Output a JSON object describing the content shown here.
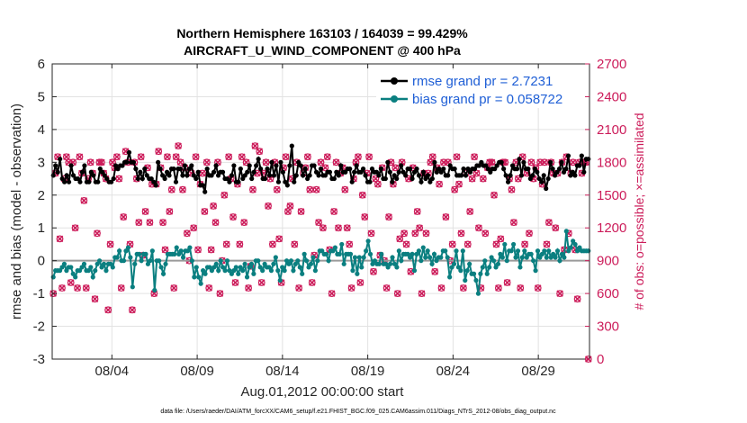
{
  "chart_data": {
    "type": "line",
    "title_line1": "Northern Hemisphere 163103 / 164039 = 99.429%",
    "title_line2": "AIRCRAFT_U_WIND_COMPONENT @ 400 hPa",
    "xlabel": "Aug.01,2012 00:00:00 start",
    "ylabel_left": "rmse and bias (model - observation)",
    "ylabel_right": "# of obs: o=possible; ×=assimilated",
    "footnote": "data file: /Users/raeder/DAI/ATM_forcXX/CAM6_setup/f.e21.FHIST_BGC.f09_025.CAM6assim.011/Diags_NTrS_2012-08/obs_diag_output.nc",
    "xlim": [
      0,
      31.5
    ],
    "ylim_left": [
      -3,
      6
    ],
    "ylim_right": [
      0,
      2700
    ],
    "x_ticks": [
      3.5,
      8.5,
      13.5,
      18.5,
      23.5,
      28.5
    ],
    "x_tick_labels": [
      "08/04",
      "08/09",
      "08/14",
      "08/19",
      "08/24",
      "08/29"
    ],
    "y_ticks_left": [
      "-3",
      "-2",
      "-1",
      "0",
      "1",
      "2",
      "3",
      "4",
      "5",
      "6"
    ],
    "y_ticks_right": [
      "0",
      "300",
      "600",
      "900",
      "1200",
      "1500",
      "1800",
      "2100",
      "2400",
      "2700"
    ],
    "grid": true,
    "legend_position": "top-right",
    "zero_line": 0,
    "series": [
      {
        "name": "rmse grand pr = 2.7231",
        "axis": "left",
        "color": "#000000",
        "values": [
          2.6,
          2.9,
          2.7,
          3.1,
          2.5,
          2.4,
          2.6,
          2.4,
          2.9,
          2.6,
          2.5,
          2.5,
          2.4,
          2.7,
          2.9,
          2.4,
          2.4,
          2.7,
          2.6,
          2.4,
          2.4,
          2.8,
          2.7,
          2.6,
          2.5,
          2.4,
          2.4,
          2.5,
          2.9,
          2.8,
          2.9,
          2.9,
          3.0,
          3.0,
          3.3,
          3.0,
          3.0,
          2.8,
          2.5,
          2.7,
          2.5,
          2.8,
          2.6,
          2.5,
          2.5,
          2.4,
          2.3,
          3.0,
          2.8,
          2.6,
          2.5,
          2.7,
          2.6,
          2.8,
          2.8,
          2.4,
          2.8,
          2.8,
          2.6,
          2.9,
          2.6,
          2.8,
          2.9,
          2.6,
          2.5,
          2.7,
          2.3,
          2.3,
          2.1,
          2.8,
          2.6,
          2.6,
          2.7,
          2.9,
          2.6,
          2.7,
          2.7,
          2.5,
          2.5,
          2.4,
          2.6,
          2.9,
          2.4,
          2.4,
          2.8,
          2.5,
          2.6,
          2.7,
          2.9,
          2.5,
          2.7,
          2.9,
          3.1,
          2.8,
          2.5,
          2.5,
          2.8,
          2.6,
          3.0,
          2.6,
          2.9,
          2.4,
          3.0,
          2.7,
          2.4,
          2.3,
          2.9,
          3.5,
          2.4,
          2.6,
          3.0,
          2.9,
          2.6,
          2.8,
          2.5,
          2.6,
          2.9,
          2.9,
          2.7,
          2.6,
          2.8,
          2.6,
          2.6,
          2.7,
          2.7,
          2.5,
          2.5,
          2.7,
          2.6,
          2.9,
          2.7,
          2.7,
          2.8,
          2.8,
          2.4,
          2.7,
          2.9,
          2.7,
          2.7,
          2.8,
          2.6,
          2.4,
          2.4,
          2.8,
          2.7,
          2.7,
          2.6,
          2.8,
          2.5,
          2.5,
          3.0,
          2.7,
          2.4,
          2.6,
          2.5,
          2.7,
          2.9,
          2.7,
          2.6,
          2.8,
          2.8,
          2.5,
          2.7,
          2.8,
          2.6,
          2.4,
          2.7,
          2.5,
          2.6,
          2.4,
          2.5,
          3.0,
          2.7,
          2.8,
          2.7,
          2.8,
          2.6,
          2.6,
          2.9,
          2.8,
          2.8,
          2.6,
          2.6,
          2.6,
          2.8,
          2.6,
          2.8,
          2.7,
          2.8,
          2.8,
          2.9,
          2.9,
          3.0,
          2.9,
          2.9,
          2.8,
          2.7,
          2.8,
          2.8,
          2.9,
          3.0,
          3.0,
          2.8,
          2.6,
          2.4,
          2.6,
          2.9,
          2.8,
          2.8,
          3.1,
          2.6,
          3.0,
          2.8,
          2.8,
          2.5,
          2.6,
          2.8,
          2.7,
          2.5,
          2.4,
          2.6,
          2.2,
          2.5,
          3.0,
          2.8,
          2.6,
          2.7,
          2.8,
          3.0,
          2.7,
          2.8,
          3.2,
          2.6,
          2.7,
          2.6,
          2.9,
          2.9,
          3.2,
          2.7,
          3.1,
          3.1
        ]
      },
      {
        "name": "bias grand pr = 0.058722",
        "axis": "left",
        "color": "#0a7f80",
        "values": [
          -0.5,
          -0.3,
          -0.3,
          -0.3,
          -0.2,
          -0.1,
          -0.3,
          -0.2,
          -0.2,
          -0.4,
          -0.5,
          -0.3,
          -0.3,
          -0.2,
          -0.1,
          -0.3,
          -0.3,
          -0.2,
          -0.5,
          -0.3,
          -0.1,
          0.0,
          -0.2,
          -0.1,
          -0.3,
          -0.1,
          -0.1,
          -0.2,
          0.1,
          0.1,
          0.3,
          0.0,
          0.0,
          0.3,
          0.4,
          0.1,
          -0.8,
          -0.1,
          0.2,
          0.2,
          0.0,
          0.2,
          0.2,
          -0.1,
          0.0,
          0.3,
          -0.9,
          0.0,
          0.0,
          -0.2,
          -0.4,
          -0.1,
          0.2,
          0.2,
          0.2,
          0.2,
          0.4,
          0.2,
          0.3,
          0.1,
          0.3,
          0.3,
          0.4,
          0.0,
          -0.5,
          -0.2,
          -0.5,
          -0.7,
          -0.3,
          -0.4,
          -0.2,
          -0.2,
          -0.3,
          -0.2,
          -0.1,
          -0.3,
          0.0,
          -0.2,
          -0.3,
          0.0,
          -0.3,
          -0.4,
          -0.3,
          -0.2,
          -0.4,
          -0.2,
          -0.3,
          -0.1,
          -0.5,
          -0.2,
          -0.1,
          -0.4,
          0.0,
          0.0,
          -0.2,
          -0.3,
          -0.1,
          -0.2,
          -0.2,
          -0.3,
          -0.1,
          0.1,
          -0.3,
          -0.6,
          -0.2,
          -0.3,
          0.0,
          -0.1,
          0.0,
          -0.3,
          -0.1,
          0.0,
          -0.2,
          -0.4,
          0.2,
          0.0,
          -0.2,
          -0.1,
          0.1,
          -0.3,
          0.0,
          0.3,
          0.3,
          0.2,
          0.2,
          0.0,
          0.3,
          0.3,
          0.4,
          0.2,
          0.2,
          0.5,
          -0.1,
          0.2,
          0.2,
          0.2,
          -0.3,
          0.1,
          -0.4,
          0.1,
          -0.2,
          0.1,
          0.3,
          0.6,
          0.2,
          -0.1,
          0.0,
          -0.1,
          -0.1,
          0.2,
          -0.1,
          -0.1,
          -0.2,
          -0.1,
          0.1,
          -0.1,
          -0.2,
          0.3,
          0.0,
          0.2,
          0.2,
          0.2,
          0.1,
          0.2,
          -0.3,
          0.2,
          0.3,
          0.0,
          0.4,
          0.1,
          0.3,
          0.1,
          -0.1,
          0.2,
          0.0,
          0.1,
          0.1,
          0.3,
          0.3,
          0.1,
          -0.5,
          -0.2,
          -0.1,
          0.3,
          -0.2,
          -0.3,
          0.3,
          -0.6,
          -0.3,
          -0.1,
          -0.4,
          -0.4,
          -0.6,
          -1.0,
          -0.4,
          -0.2,
          0.0,
          -0.4,
          -0.2,
          0.1,
          0.0,
          -0.2,
          -0.1,
          0.2,
          0.1,
          0.5,
          0.0,
          0.3,
          0.3,
          0.5,
          0.1,
          0.3,
          -0.2,
          0.1,
          0.3,
          0.1,
          0.2,
          0.2,
          0.0,
          -0.3,
          0.3,
          0.1,
          0.2,
          0.3,
          0.1,
          0.3,
          0.1,
          0.2,
          0.1,
          0.3,
          0.0,
          0.2,
          0.1,
          0.9,
          0.3,
          0.4,
          0.6,
          0.5,
          0.3,
          0.4,
          0.3,
          0.3,
          0.3,
          0.3
        ]
      },
      {
        "name": "# obs possible",
        "axis": "right",
        "marker": "o",
        "color": "#cc1c5a",
        "values": [
          600,
          1700,
          1850,
          1100,
          650,
          1650,
          1850,
          1800,
          700,
          1800,
          1200,
          650,
          1850,
          1700,
          1450,
          650,
          1650,
          1800,
          1700,
          550,
          1150,
          1800,
          1800,
          1700,
          1650,
          450,
          1050,
          1800,
          1750,
          1850,
          1650,
          650,
          1300,
          1900,
          1800,
          1050,
          450,
          1800,
          1650,
          1250,
          1850,
          950,
          1350,
          1750,
          1250,
          1600,
          600,
          1600,
          1900,
          1750,
          1250,
          1000,
          1850,
          1350,
          1550,
          650,
          1850,
          1950,
          1800,
          1550,
          1750,
          1150,
          900,
          1700,
          1200,
          1850,
          1000,
          1600,
          1700,
          1350,
          1800,
          650,
          1000,
          1400,
          1250,
          1800,
          600,
          900,
          1500,
          1050,
          1850,
          1650,
          1300,
          700,
          1600,
          1050,
          1850,
          1250,
          1800,
          650,
          850,
          1550,
          1950,
          1700,
          1900,
          700,
          1700,
          1800,
          1400,
          1650,
          1050,
          1800,
          1550,
          1100,
          700,
          1750,
          1850,
          1350,
          1400,
          1650,
          1050,
          1800,
          650,
          1350,
          1700,
          1750,
          1850,
          1550,
          700,
          950,
          1550,
          1250,
          1800,
          1200,
          1750,
          1850,
          1000,
          600,
          1350,
          1800,
          1200,
          1700,
          1750,
          1550,
          1200,
          1050,
          650,
          1650,
          1800,
          1850,
          700,
          1500,
          1300,
          1700,
          1850,
          1150,
          800,
          1650,
          1600,
          950,
          1750,
          900,
          650,
          1300,
          1800,
          1600,
          1750,
          600,
          1100,
          1800,
          1150,
          1050,
          1650,
          800,
          1750,
          1150,
          1350,
          1200,
          600,
          1700,
          1150,
          1700,
          1800,
          1850,
          800,
          1750,
          1600,
          650,
          1800,
          1300,
          1800,
          900,
          1050,
          1550,
          1850,
          1600,
          1150,
          650,
          1700,
          1050,
          1350,
          1650,
          1850,
          1700,
          1200,
          650,
          1650,
          1150,
          1750,
          1800,
          1800,
          1500,
          1050,
          650,
          1100,
          1800,
          1800,
          700,
          1650,
          1550,
          1250,
          1800,
          1650,
          650,
          1850,
          1050,
          1700,
          1150,
          1800,
          1650,
          1750,
          650,
          1800,
          1600,
          1800,
          1050,
          1250,
          1800,
          1700,
          1200,
          1700,
          600,
          1800,
          1000,
          1850,
          1150,
          1700,
          1800,
          1000,
          550,
          1800,
          1700,
          1800,
          1800,
          0
        ]
      },
      {
        "name": "# obs assimilated",
        "axis": "right",
        "marker": "x",
        "color": "#cc1c5a",
        "values": [
          600,
          1700,
          1850,
          1100,
          650,
          1650,
          1850,
          1800,
          700,
          1800,
          1200,
          650,
          1850,
          1700,
          1450,
          650,
          1650,
          1800,
          1700,
          550,
          1150,
          1800,
          1800,
          1700,
          1650,
          450,
          1050,
          1800,
          1750,
          1850,
          1650,
          650,
          1300,
          1900,
          1800,
          1050,
          450,
          1800,
          1650,
          1250,
          1850,
          950,
          1350,
          1750,
          1250,
          1600,
          600,
          1600,
          1900,
          1750,
          1250,
          1000,
          1850,
          1350,
          1550,
          650,
          1850,
          1950,
          1800,
          1550,
          1750,
          1150,
          900,
          1700,
          1200,
          1850,
          1000,
          1600,
          1700,
          1350,
          1800,
          650,
          1000,
          1400,
          1250,
          1800,
          600,
          900,
          1500,
          1050,
          1850,
          1650,
          1300,
          700,
          1600,
          1050,
          1850,
          1250,
          1800,
          650,
          850,
          1550,
          1950,
          1700,
          1900,
          700,
          1700,
          1800,
          1400,
          1650,
          1050,
          1800,
          1550,
          1100,
          700,
          1750,
          1850,
          1350,
          1400,
          1650,
          1050,
          1800,
          650,
          1350,
          1700,
          1750,
          1850,
          1550,
          700,
          950,
          1550,
          1250,
          1800,
          1200,
          1750,
          1850,
          1000,
          600,
          1350,
          1800,
          1200,
          1700,
          1750,
          1550,
          1200,
          1050,
          650,
          1650,
          1800,
          1850,
          700,
          1500,
          1300,
          1700,
          1850,
          1150,
          800,
          1650,
          1600,
          950,
          1750,
          900,
          650,
          1300,
          1800,
          1600,
          1750,
          600,
          1100,
          1800,
          1150,
          1050,
          1650,
          800,
          1750,
          1150,
          1350,
          1200,
          600,
          1700,
          1150,
          1700,
          1800,
          1850,
          800,
          1750,
          1600,
          650,
          1800,
          1300,
          1800,
          900,
          1050,
          1550,
          1850,
          1600,
          1150,
          650,
          1700,
          1050,
          1350,
          1650,
          1850,
          1700,
          1200,
          650,
          1650,
          1150,
          1750,
          1800,
          1800,
          1500,
          1050,
          650,
          1100,
          1800,
          1800,
          700,
          1650,
          1550,
          1250,
          1800,
          1650,
          650,
          1850,
          1050,
          1700,
          1150,
          1800,
          1650,
          1750,
          650,
          1800,
          1600,
          1800,
          1050,
          1250,
          1800,
          1700,
          1200,
          1700,
          600,
          1800,
          1000,
          1850,
          1150,
          1700,
          1800,
          1000,
          550,
          1800,
          1700,
          1800,
          1800,
          0
        ]
      }
    ]
  }
}
